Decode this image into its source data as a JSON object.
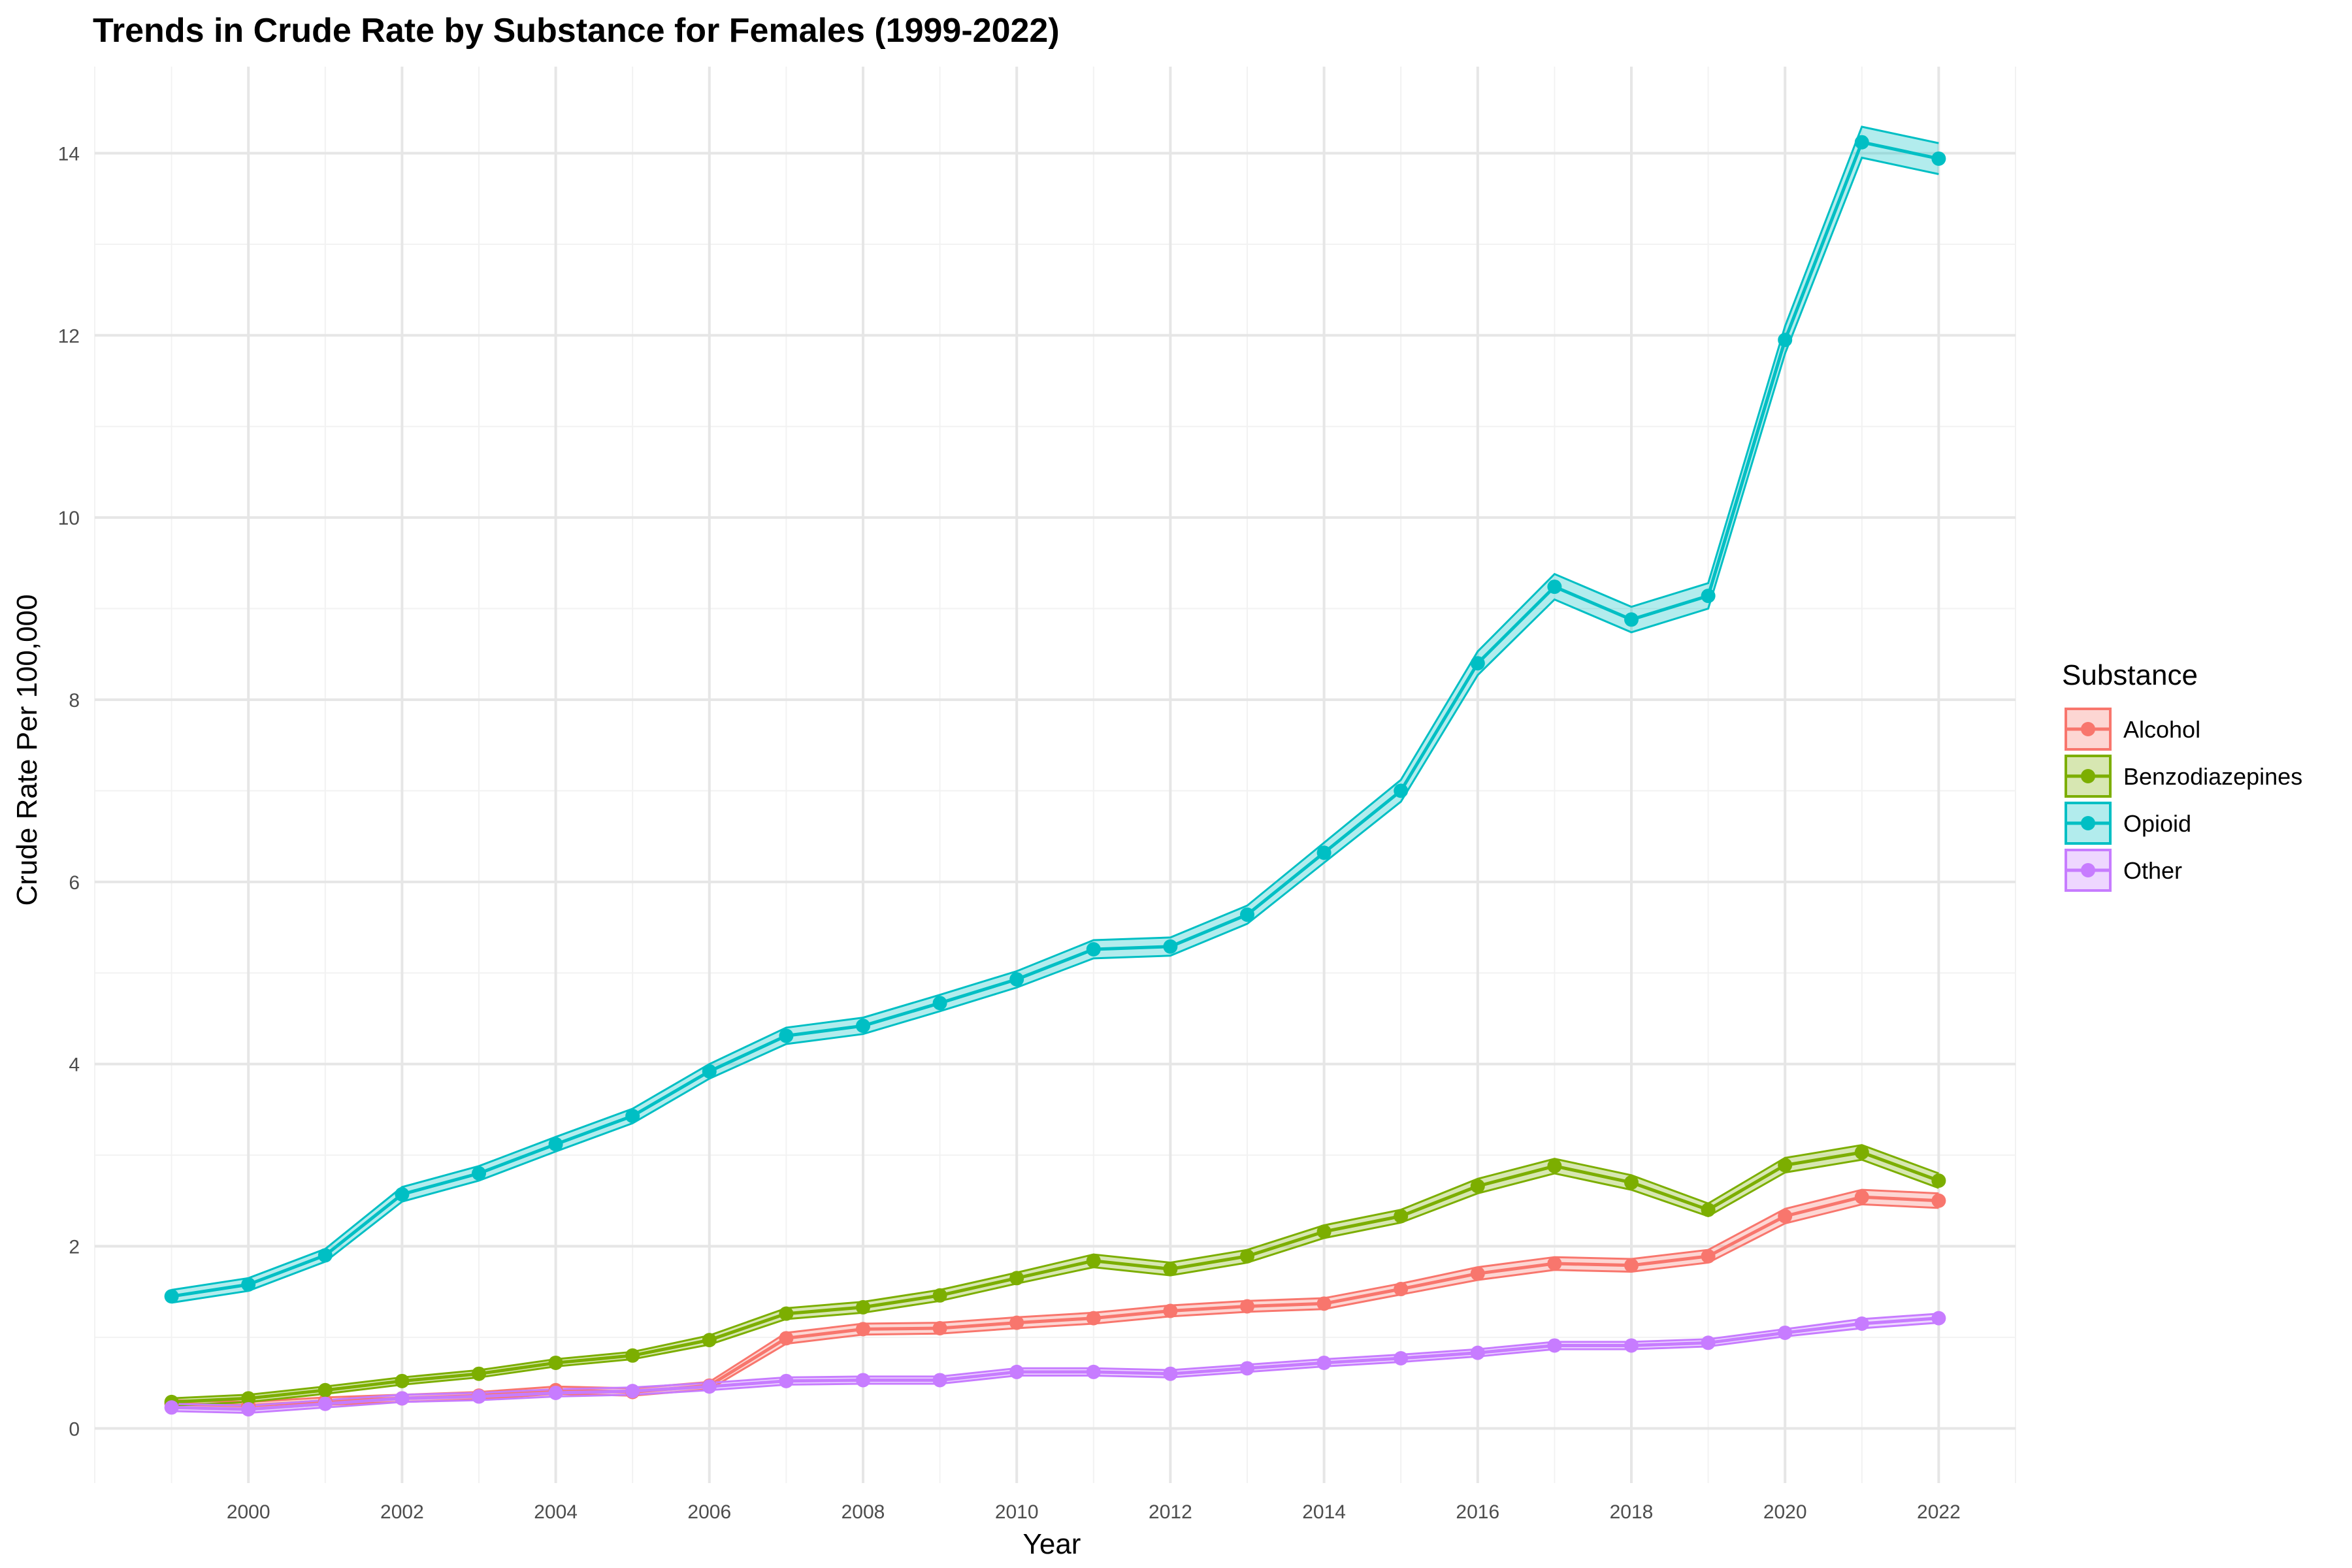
{
  "chart_data": {
    "type": "line",
    "title": "Trends in Crude Rate by Substance for Females (1999-2022)",
    "xlabel": "Year",
    "ylabel": "Crude Rate Per 100,000",
    "xlim": [
      1998,
      2023
    ],
    "ylim": [
      -0.6,
      14.95
    ],
    "x_ticks": [
      2000,
      2002,
      2004,
      2006,
      2008,
      2010,
      2012,
      2014,
      2016,
      2018,
      2020,
      2022
    ],
    "y_ticks": [
      0,
      2,
      4,
      6,
      8,
      10,
      12,
      14
    ],
    "x_tick_labels": [
      "2000",
      "2002",
      "2004",
      "2006",
      "2008",
      "2010",
      "2012",
      "2014",
      "2016",
      "2018",
      "2020",
      "2022"
    ],
    "y_tick_labels": [
      "0",
      "2",
      "4",
      "6",
      "8",
      "10",
      "12",
      "14"
    ],
    "grid": true,
    "legend_title": "Substance",
    "legend_position": "right",
    "x": [
      1999,
      2000,
      2001,
      2002,
      2003,
      2004,
      2005,
      2006,
      2007,
      2008,
      2009,
      2010,
      2011,
      2012,
      2013,
      2014,
      2015,
      2016,
      2017,
      2018,
      2019,
      2020,
      2021,
      2022
    ],
    "series": [
      {
        "name": "Alcohol",
        "color": "#F8766D",
        "values": [
          0.27,
          0.25,
          0.3,
          0.33,
          0.36,
          0.42,
          0.4,
          0.47,
          0.99,
          1.09,
          1.1,
          1.16,
          1.21,
          1.29,
          1.34,
          1.37,
          1.53,
          1.7,
          1.81,
          1.79,
          1.89,
          2.33,
          2.54,
          2.5
        ],
        "lower": [
          0.23,
          0.21,
          0.26,
          0.29,
          0.32,
          0.38,
          0.36,
          0.43,
          0.93,
          1.03,
          1.04,
          1.1,
          1.15,
          1.23,
          1.28,
          1.31,
          1.47,
          1.63,
          1.74,
          1.72,
          1.82,
          2.25,
          2.46,
          2.42
        ],
        "upper": [
          0.31,
          0.29,
          0.34,
          0.37,
          0.4,
          0.46,
          0.44,
          0.51,
          1.05,
          1.15,
          1.16,
          1.22,
          1.27,
          1.35,
          1.4,
          1.43,
          1.59,
          1.77,
          1.88,
          1.86,
          1.96,
          2.41,
          2.62,
          2.58
        ]
      },
      {
        "name": "Benzodiazepines",
        "color": "#7CAE00",
        "values": [
          0.29,
          0.33,
          0.42,
          0.52,
          0.6,
          0.72,
          0.8,
          0.97,
          1.26,
          1.33,
          1.46,
          1.65,
          1.84,
          1.75,
          1.89,
          2.16,
          2.33,
          2.66,
          2.88,
          2.7,
          2.4,
          2.89,
          3.03,
          2.72
        ],
        "lower": [
          0.25,
          0.29,
          0.38,
          0.48,
          0.56,
          0.68,
          0.76,
          0.92,
          1.2,
          1.27,
          1.4,
          1.59,
          1.77,
          1.68,
          1.82,
          2.09,
          2.26,
          2.58,
          2.8,
          2.62,
          2.33,
          2.81,
          2.95,
          2.64
        ],
        "upper": [
          0.33,
          0.37,
          0.46,
          0.56,
          0.64,
          0.76,
          0.84,
          1.02,
          1.32,
          1.39,
          1.52,
          1.71,
          1.91,
          1.82,
          1.96,
          2.23,
          2.4,
          2.74,
          2.96,
          2.78,
          2.47,
          2.97,
          3.11,
          2.8
        ]
      },
      {
        "name": "Opioid",
        "color": "#00BFC4",
        "values": [
          1.45,
          1.58,
          1.9,
          2.57,
          2.8,
          3.12,
          3.43,
          3.92,
          4.31,
          4.42,
          4.67,
          4.93,
          5.26,
          5.29,
          5.64,
          6.32,
          7.0,
          8.4,
          9.24,
          8.88,
          9.14,
          11.95,
          14.12,
          13.94
        ],
        "lower": [
          1.38,
          1.51,
          1.83,
          2.49,
          2.72,
          3.04,
          3.35,
          3.84,
          4.22,
          4.33,
          4.58,
          4.84,
          5.16,
          5.19,
          5.54,
          6.21,
          6.88,
          8.27,
          9.1,
          8.74,
          9.0,
          11.8,
          13.95,
          13.77
        ],
        "upper": [
          1.52,
          1.65,
          1.97,
          2.65,
          2.88,
          3.2,
          3.51,
          4.0,
          4.4,
          4.51,
          4.76,
          5.02,
          5.36,
          5.39,
          5.74,
          6.43,
          7.12,
          8.53,
          9.38,
          9.02,
          9.28,
          12.1,
          14.29,
          14.11
        ]
      },
      {
        "name": "Other",
        "color": "#C77CFF",
        "values": [
          0.23,
          0.21,
          0.27,
          0.33,
          0.35,
          0.39,
          0.41,
          0.46,
          0.52,
          0.53,
          0.53,
          0.62,
          0.62,
          0.6,
          0.66,
          0.72,
          0.77,
          0.83,
          0.91,
          0.91,
          0.94,
          1.05,
          1.15,
          1.21
        ],
        "lower": [
          0.19,
          0.17,
          0.23,
          0.29,
          0.31,
          0.35,
          0.37,
          0.42,
          0.48,
          0.49,
          0.49,
          0.58,
          0.58,
          0.56,
          0.62,
          0.68,
          0.73,
          0.79,
          0.87,
          0.87,
          0.9,
          1.01,
          1.1,
          1.16
        ],
        "upper": [
          0.27,
          0.25,
          0.31,
          0.37,
          0.39,
          0.43,
          0.45,
          0.5,
          0.56,
          0.57,
          0.57,
          0.66,
          0.66,
          0.64,
          0.7,
          0.76,
          0.81,
          0.87,
          0.95,
          0.95,
          0.98,
          1.09,
          1.2,
          1.26
        ]
      }
    ]
  }
}
